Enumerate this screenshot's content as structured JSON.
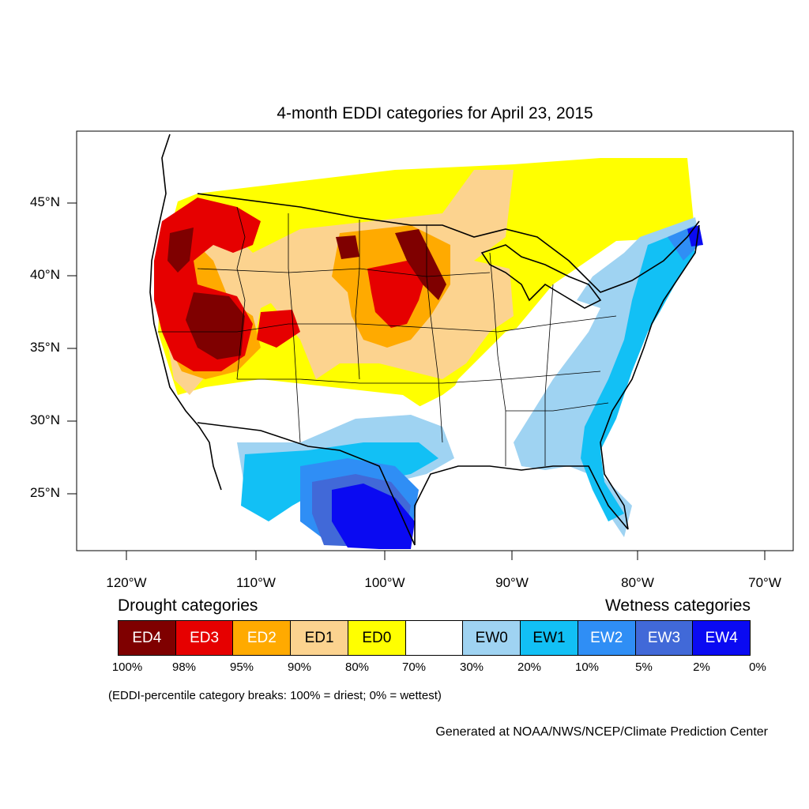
{
  "title": "4-month EDDI categories for April 23, 2015",
  "lat_labels": [
    "45°N",
    "40°N",
    "35°N",
    "30°N",
    "25°N"
  ],
  "lon_labels": [
    "120°W",
    "110°W",
    "100°W",
    "90°W",
    "80°W",
    "70°W"
  ],
  "legend": {
    "drought_heading": "Drought categories",
    "wetness_heading": "Wetness categories",
    "categories": [
      {
        "label": "ED4",
        "color": "#7f0000",
        "text_color": "#ffffff"
      },
      {
        "label": "ED3",
        "color": "#e60000",
        "text_color": "#ffffff"
      },
      {
        "label": "ED2",
        "color": "#ffaa00",
        "text_color": "#ffffff"
      },
      {
        "label": "ED1",
        "color": "#fcd38f",
        "text_color": "#000000"
      },
      {
        "label": "ED0",
        "color": "#ffff00",
        "text_color": "#000000"
      },
      {
        "label": "",
        "color": "#ffffff",
        "text_color": "#000000"
      },
      {
        "label": "EW0",
        "color": "#9fd3f2",
        "text_color": "#000000"
      },
      {
        "label": "EW1",
        "color": "#12c0f5",
        "text_color": "#000000"
      },
      {
        "label": "EW2",
        "color": "#2f8ef5",
        "text_color": "#ffffff"
      },
      {
        "label": "EW3",
        "color": "#4169d8",
        "text_color": "#ffffff"
      },
      {
        "label": "EW4",
        "color": "#0a0af2",
        "text_color": "#ffffff"
      }
    ],
    "percentiles": [
      "100%",
      "98%",
      "95%",
      "90%",
      "80%",
      "70%",
      "30%",
      "20%",
      "10%",
      "5%",
      "2%",
      "0%"
    ]
  },
  "breaks_note": "(EDDI-percentile category breaks: 100% = driest; 0% = wettest)",
  "credit": "Generated at NOAA/NWS/NCEP/Climate Prediction Center"
}
